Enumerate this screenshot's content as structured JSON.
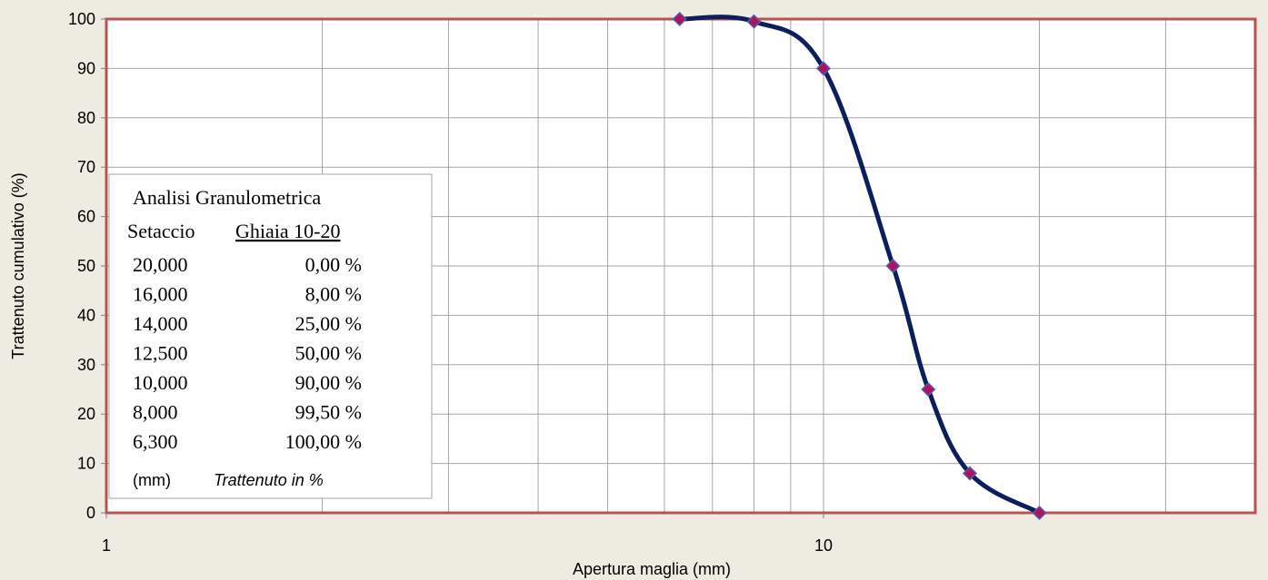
{
  "chart_data": {
    "type": "line",
    "x_scale": "log",
    "xlabel": "Apertura maglia  (mm)",
    "ylabel": "Trattenuto cumulativo (%)",
    "xlim": [
      1,
      40
    ],
    "ylim": [
      0,
      100
    ],
    "x_tick_labels": [
      "1",
      "10"
    ],
    "y_ticks": [
      0,
      10,
      20,
      30,
      40,
      50,
      60,
      70,
      80,
      90,
      100
    ],
    "grid": true,
    "series": [
      {
        "x": [
          6.3,
          8.0,
          10.0,
          12.5,
          14.0,
          16.0,
          20.0
        ],
        "y": [
          100.0,
          99.5,
          90.0,
          50.0,
          25.0,
          8.0,
          0.0
        ]
      }
    ],
    "colors": {
      "line": "#0A1F5C",
      "marker_fill": "#B0125F",
      "marker_edge": "#4A60B0",
      "plot_border": "#B85450",
      "background": "#EEEBE0"
    },
    "table": {
      "title": "Analisi Granulometrica",
      "col1_header": "Setaccio",
      "col2_header": "Ghiaia 10-20",
      "rows": [
        [
          "20,000",
          "0,00 %"
        ],
        [
          "16,000",
          "8,00 %"
        ],
        [
          "14,000",
          "25,00 %"
        ],
        [
          "12,500",
          "50,00 %"
        ],
        [
          "10,000",
          "90,00 %"
        ],
        [
          "8,000",
          "99,50 %"
        ],
        [
          "6,300",
          "100,00 %"
        ]
      ],
      "unit_label": "(mm)",
      "trattenuto_label": "Trattenuto in %"
    }
  }
}
